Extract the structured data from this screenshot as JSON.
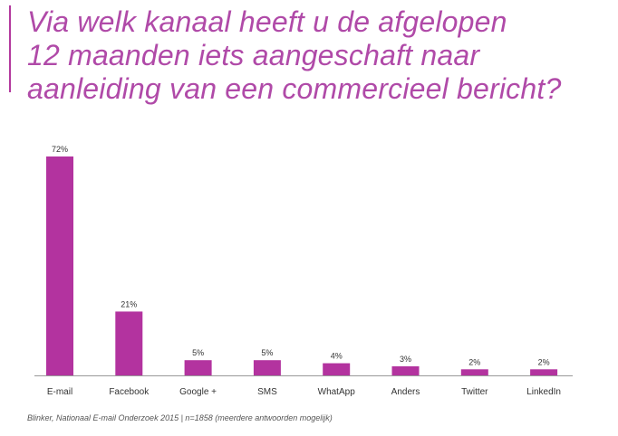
{
  "title_lines": [
    "Via welk kanaal heeft u de afgelopen",
    "12 maanden iets aangeschaft naar",
    "aanleiding van een commercieel bericht?"
  ],
  "source": "Blinker, Nationaal E-mail Onderzoek 2015 | n=1858 (meerdere antwoorden mogelijk)",
  "colors": {
    "bar": "#b3339f",
    "title": "#b04aa8",
    "axis": "#999999"
  },
  "chart_data": {
    "type": "bar",
    "title": "Via welk kanaal heeft u de afgelopen 12 maanden iets aangeschaft naar aanleiding van een commercieel bericht?",
    "categories": [
      "E-mail",
      "Facebook",
      "Google +",
      "SMS",
      "WhatApp",
      "Anders",
      "Twitter",
      "LinkedIn"
    ],
    "values": [
      72,
      21,
      5,
      5,
      4,
      3,
      2,
      2
    ],
    "value_labels": [
      "72%",
      "21%",
      "5%",
      "5%",
      "4%",
      "3%",
      "2%",
      "2%"
    ],
    "unit": "%",
    "xlabel": "",
    "ylabel": "",
    "ylim": [
      0,
      72
    ],
    "grid": false,
    "legend": "none"
  }
}
